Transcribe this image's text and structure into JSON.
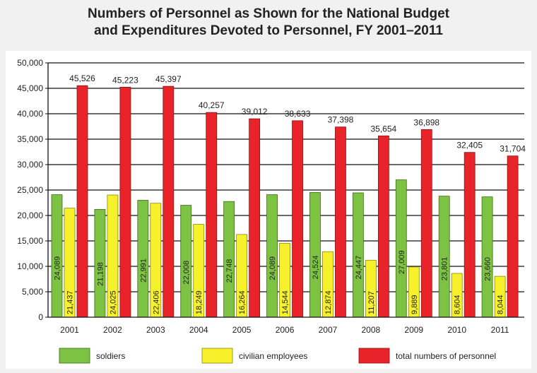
{
  "chart_data": {
    "type": "bar",
    "title_line1": "Numbers of Personnel as Shown for the National Budget",
    "title_line2": "and Expenditures Devoted to Personnel, FY 2001–2011",
    "categories": [
      "2001",
      "2002",
      "2003",
      "2004",
      "2005",
      "2006",
      "2007",
      "2008",
      "2009",
      "2010",
      "2011"
    ],
    "series": [
      {
        "name": "soldiers",
        "color": "#7dc242",
        "values": [
          24089,
          21198,
          22991,
          22008,
          22748,
          24089,
          24524,
          24447,
          27009,
          23801,
          23660
        ],
        "labels": [
          "24,089",
          "21,198",
          "22,991",
          "22,008",
          "22,748",
          "24,089",
          "24,524",
          "24,447",
          "27,009",
          "23,801",
          "23,660"
        ]
      },
      {
        "name": "civilian employees",
        "color": "#f7f12b",
        "values": [
          21437,
          24025,
          22406,
          18249,
          16264,
          14544,
          12874,
          11207,
          9889,
          8604,
          8044
        ],
        "labels": [
          "21,437",
          "24,025",
          "22,406",
          "18,249",
          "16,264",
          "14,544",
          "12,874",
          "11,207",
          "9,889",
          "8,604",
          "8,044"
        ]
      },
      {
        "name": "total numbers of personnel",
        "color": "#e8242a",
        "values": [
          45526,
          45223,
          45397,
          40257,
          39012,
          38633,
          37398,
          35654,
          36898,
          32405,
          31704
        ],
        "labels": [
          "45,526",
          "45,223",
          "45,397",
          "40,257",
          "39,012",
          "38,633",
          "37,398",
          "35,654",
          "36,898",
          "32,405",
          "31,704"
        ]
      }
    ],
    "ylim": [
      0,
      50000
    ],
    "yticks": [
      0,
      5000,
      10000,
      15000,
      20000,
      25000,
      30000,
      35000,
      40000,
      45000,
      50000
    ],
    "ytick_labels": [
      "0",
      "5,000",
      "10,000",
      "15,000",
      "20,000",
      "25,000",
      "30,000",
      "35,000",
      "40,000",
      "45,000",
      "50,000"
    ],
    "grid": true,
    "legend_position": "bottom"
  }
}
